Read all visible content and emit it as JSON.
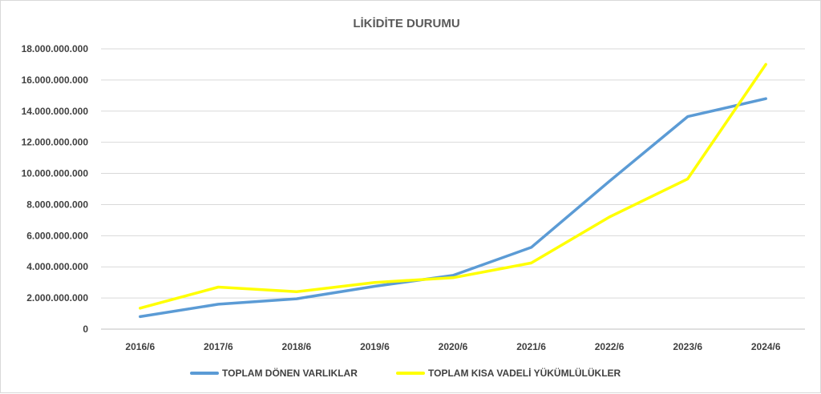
{
  "chart_data": {
    "type": "line",
    "title": "LİKİDİTE DURUMU",
    "xlabel": "",
    "ylabel": "",
    "categories": [
      "2016/6",
      "2017/6",
      "2018/6",
      "2019/6",
      "2020/6",
      "2021/6",
      "2022/6",
      "2023/6",
      "2024/6"
    ],
    "ylim": [
      0,
      18000000000
    ],
    "yticks": [
      0,
      2000000000,
      4000000000,
      6000000000,
      8000000000,
      10000000000,
      12000000000,
      14000000000,
      16000000000,
      18000000000
    ],
    "ytick_labels": [
      "0",
      "2.000.000.000",
      "4.000.000.000",
      "6.000.000.000",
      "8.000.000.000",
      "10.000.000.000",
      "12.000.000.000",
      "14.000.000.000",
      "16.000.000.000",
      "18.000.000.000"
    ],
    "grid": true,
    "legend_position": "bottom",
    "series": [
      {
        "name": "TOPLAM DÖNEN VARLIKLAR",
        "color": "#5b9bd5",
        "values": [
          800000000,
          1600000000,
          1950000000,
          2750000000,
          3450000000,
          5250000000,
          9500000000,
          13650000000,
          14800000000
        ]
      },
      {
        "name": "TOPLAM KISA VADELİ YÜKÜMLÜLÜKLER",
        "color": "#ffff00",
        "values": [
          1350000000,
          2700000000,
          2400000000,
          3000000000,
          3300000000,
          4250000000,
          7200000000,
          9650000000,
          17000000000
        ]
      }
    ]
  }
}
